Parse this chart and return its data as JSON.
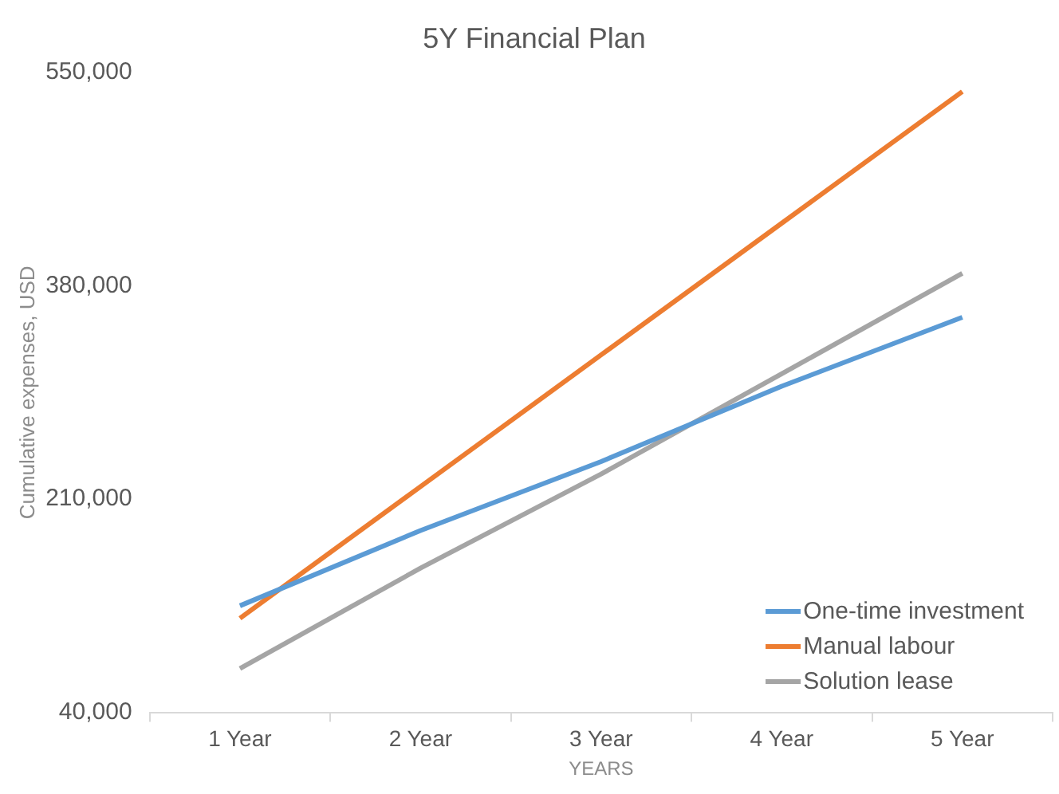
{
  "chart_data": {
    "type": "line",
    "title": "5Y Financial Plan",
    "xlabel": "YEARS",
    "ylabel": "Cumulative expenses, USD",
    "categories": [
      "1 Year",
      "2 Year",
      "3 Year",
      "4 Year",
      "5 Year"
    ],
    "series": [
      {
        "name": "One-time investment",
        "color": "#5b9bd5",
        "values": [
          125000,
          185000,
          240000,
          300000,
          355000
        ]
      },
      {
        "name": "Manual labour",
        "color": "#ed7d31",
        "values": [
          115000,
          220000,
          325000,
          430000,
          535000
        ]
      },
      {
        "name": "Solution lease",
        "color": "#a5a5a5",
        "values": [
          75000,
          155000,
          230000,
          310000,
          390000
        ]
      }
    ],
    "ylim": [
      40000,
      550000
    ],
    "yticks": [
      {
        "value": 40000,
        "label": "40,000"
      },
      {
        "value": 210000,
        "label": "210,000"
      },
      {
        "value": 380000,
        "label": "380,000"
      },
      {
        "value": 550000,
        "label": "550,000"
      }
    ],
    "grid": false,
    "legend": "bottom right",
    "marker": "none",
    "line_style": "solid"
  }
}
